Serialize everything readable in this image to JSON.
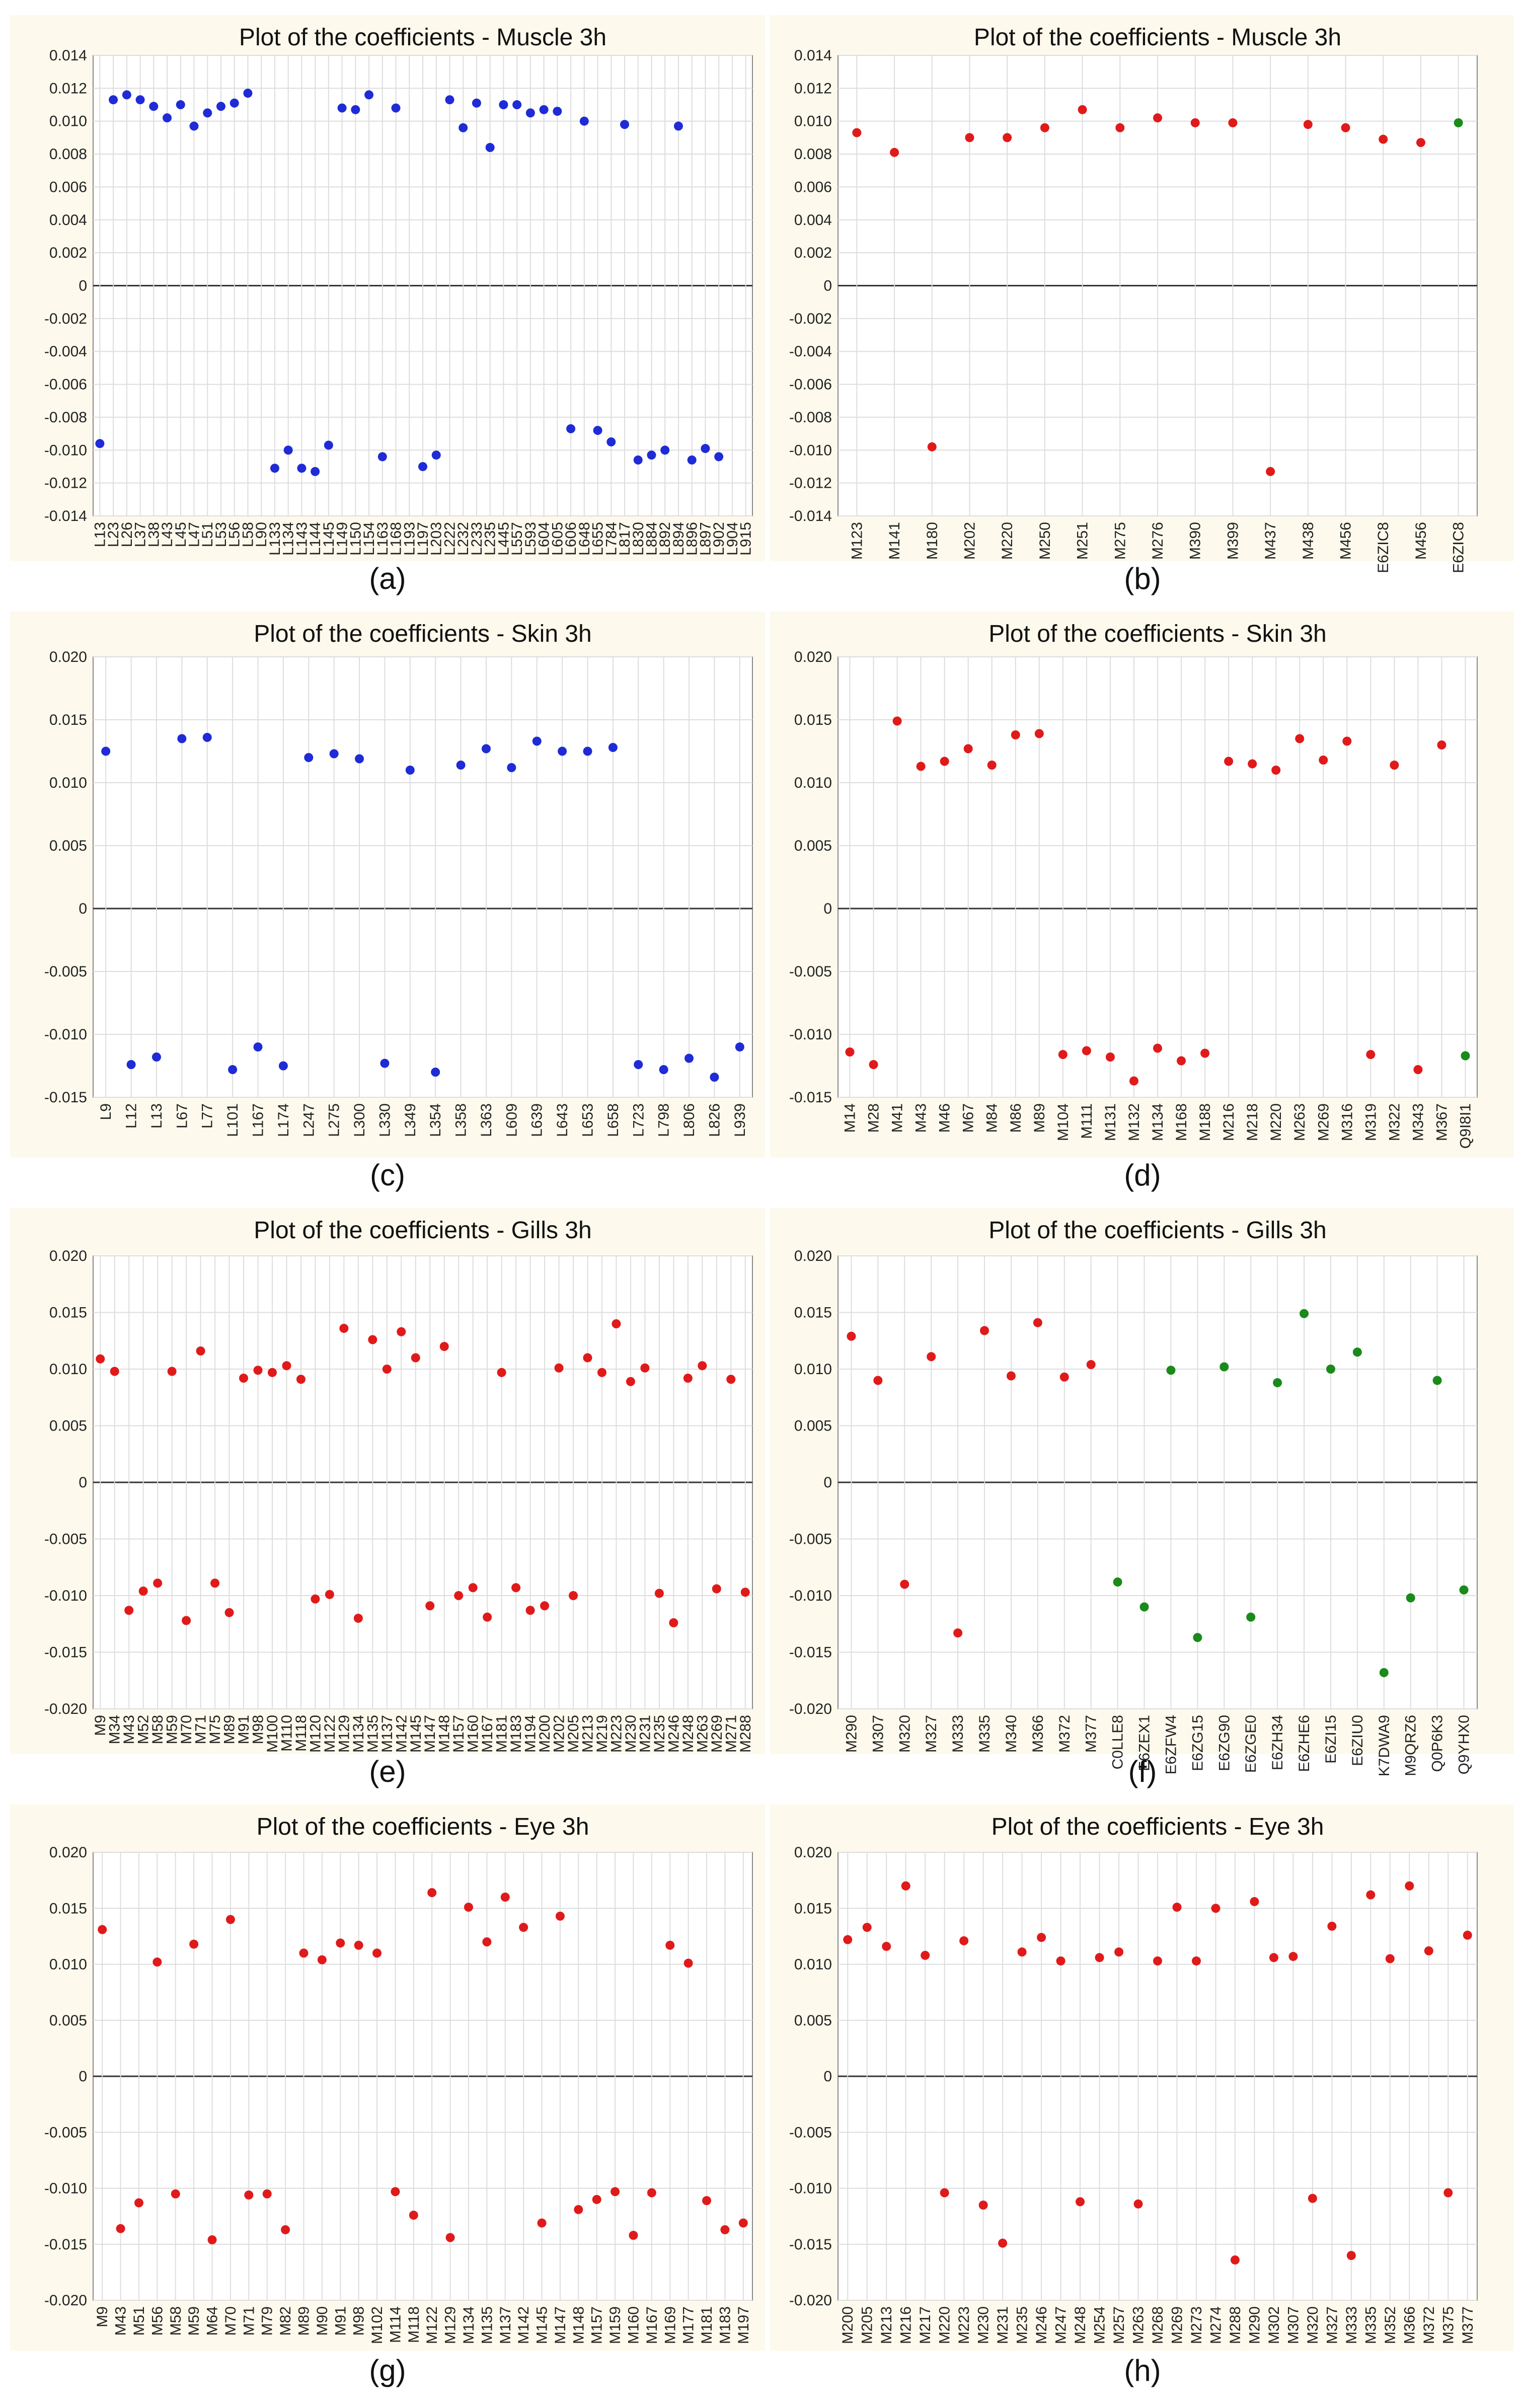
{
  "colors": {
    "blue": "#1f2bd6",
    "red": "#e01a1a",
    "green": "#1a8a1a",
    "panel_bg": "#fdf9ec",
    "grid": "#dddddd",
    "zero_line": "#333333"
  },
  "chart_data": [
    {
      "type": "scatter",
      "title": "Plot of the coefficients - Muscle 3h",
      "caption": "(a)",
      "ylim": [
        -0.014,
        0.014
      ],
      "yticks": [
        "0.014",
        "0.012",
        "0.010",
        "0.008",
        "0.006",
        "0.004",
        "0.002",
        "0",
        "-0.002",
        "-0.004",
        "-0.006",
        "-0.008",
        "-0.010",
        "-0.012",
        "-0.014"
      ],
      "grid": true,
      "categories": [
        "L13",
        "L23",
        "L26",
        "L37",
        "L38",
        "L43",
        "L45",
        "L47",
        "L51",
        "L53",
        "L56",
        "L58",
        "L90",
        "L133",
        "L134",
        "L143",
        "L144",
        "L145",
        "L149",
        "L150",
        "L154",
        "L163",
        "L168",
        "L193",
        "L197",
        "L203",
        "L222",
        "L232",
        "L233",
        "L235",
        "L445",
        "L557",
        "L593",
        "L604",
        "L605",
        "L606",
        "L648",
        "L655",
        "L784",
        "L817",
        "L830",
        "L884",
        "L892",
        "L894",
        "L896",
        "L897",
        "L902",
        "L904",
        "L915"
      ],
      "values": [
        -0.0096,
        0.0113,
        0.0116,
        0.0113,
        0.0109,
        0.0102,
        0.011,
        0.0097,
        0.0105,
        0.0109,
        0.0111,
        0.0117,
        null,
        -0.0111,
        -0.01,
        -0.0111,
        -0.0113,
        -0.0097,
        0.0108,
        0.0107,
        0.0116,
        -0.0104,
        0.0108,
        null,
        -0.011,
        -0.0103,
        0.0113,
        0.0096,
        0.0111,
        0.0084,
        0.011,
        0.011,
        0.0105,
        0.0107,
        0.0106,
        -0.0087,
        0.01,
        -0.0088,
        -0.0095,
        0.0098,
        -0.0106,
        -0.0103,
        -0.01,
        0.0097,
        -0.0106,
        -0.0099,
        -0.0104,
        null,
        null
      ],
      "point_colors": [
        "blue",
        "blue",
        "blue",
        "blue",
        "blue",
        "blue",
        "blue",
        "blue",
        "blue",
        "blue",
        "blue",
        "blue",
        "blue",
        "blue",
        "blue",
        "blue",
        "blue",
        "blue",
        "blue",
        "blue",
        "blue",
        "blue",
        "blue",
        "blue",
        "blue",
        "blue",
        "blue",
        "blue",
        "blue",
        "blue",
        "blue",
        "blue",
        "blue",
        "blue",
        "blue",
        "blue",
        "blue",
        "blue",
        "blue",
        "blue",
        "blue",
        "blue",
        "blue",
        "blue",
        "blue",
        "blue",
        "blue",
        "blue",
        "blue"
      ],
      "tick_rotate": true
    },
    {
      "type": "scatter",
      "title": "Plot of the coefficients - Muscle 3h",
      "caption": "(b)",
      "ylim": [
        -0.014,
        0.014
      ],
      "yticks": [
        "0.014",
        "0.012",
        "0.010",
        "0.008",
        "0.006",
        "0.004",
        "0.002",
        "0",
        "-0.002",
        "-0.004",
        "-0.006",
        "-0.008",
        "-0.010",
        "-0.012",
        "-0.014"
      ],
      "grid": true,
      "categories": [
        "M123",
        "M141",
        "M180",
        "M202",
        "M220",
        "M250",
        "M251",
        "M275",
        "M276",
        "M390",
        "M399",
        "M437",
        "M438",
        "M456",
        "E6ZIC8",
        "M456",
        "E6ZIC8"
      ],
      "values": [
        0.0093,
        0.0081,
        -0.0098,
        0.009,
        0.009,
        0.0096,
        0.0107,
        0.0096,
        0.0102,
        0.0099,
        0.0099,
        -0.0113,
        0.0098,
        0.0096,
        0.0089,
        0.0087,
        0.0099
      ],
      "point_colors": [
        "red",
        "red",
        "red",
        "red",
        "red",
        "red",
        "red",
        "red",
        "red",
        "red",
        "red",
        "red",
        "red",
        "red",
        "red",
        "red",
        "green"
      ],
      "tick_rotate": true
    },
    {
      "type": "scatter",
      "title": "Plot of the coefficients - Skin 3h",
      "caption": "(c)",
      "ylim": [
        -0.015,
        0.02
      ],
      "yticks": [
        "0.020",
        "0.015",
        "0.010",
        "0.005",
        "0",
        "-0.005",
        "-0.010",
        "-0.015"
      ],
      "grid": true,
      "categories": [
        "L9",
        "L12",
        "L13",
        "L67",
        "L77",
        "L101",
        "L167",
        "L174",
        "L247",
        "L275",
        "L300",
        "L330",
        "L349",
        "L354",
        "L358",
        "L363",
        "L609",
        "L639",
        "L643",
        "L653",
        "L658",
        "L723",
        "L798",
        "L806",
        "L826",
        "L939"
      ],
      "values": [
        0.0125,
        -0.0124,
        -0.0118,
        0.0135,
        0.0136,
        -0.0128,
        -0.011,
        -0.0125,
        0.012,
        0.0123,
        0.0119,
        -0.0123,
        0.011,
        -0.013,
        0.0114,
        0.0127,
        0.0112,
        0.0133,
        0.0125,
        0.0125,
        0.0128,
        -0.0124,
        -0.0128,
        -0.0119,
        -0.0134,
        -0.011
      ],
      "point_colors": [
        "blue",
        "blue",
        "blue",
        "blue",
        "blue",
        "blue",
        "blue",
        "blue",
        "blue",
        "blue",
        "blue",
        "blue",
        "blue",
        "blue",
        "blue",
        "blue",
        "blue",
        "blue",
        "blue",
        "blue",
        "blue",
        "blue",
        "blue",
        "blue",
        "blue",
        "blue"
      ],
      "tick_rotate": true,
      "dual_points": true
    },
    {
      "type": "scatter",
      "title": "Plot of the coefficients - Skin 3h",
      "caption": "(d)",
      "ylim": [
        -0.015,
        0.02
      ],
      "yticks": [
        "0.020",
        "0.015",
        "0.010",
        "0.005",
        "0",
        "-0.005",
        "-0.010",
        "-0.015"
      ],
      "grid": true,
      "categories": [
        "M14",
        "M28",
        "M41",
        "M43",
        "M46",
        "M67",
        "M84",
        "M86",
        "M89",
        "M104",
        "M111",
        "M131",
        "M132",
        "M134",
        "M168",
        "M188",
        "M216",
        "M218",
        "M220",
        "M263",
        "M269",
        "M316",
        "M319",
        "M322",
        "M343",
        "M367",
        "Q9I8I1"
      ],
      "values": [
        -0.0114,
        -0.0124,
        0.0149,
        0.0113,
        0.0117,
        0.0127,
        0.0114,
        0.0138,
        0.0139,
        -0.0116,
        -0.0113,
        -0.0118,
        -0.0137,
        -0.0111,
        -0.0121,
        -0.0115,
        0.0117,
        0.0115,
        0.011,
        0.0135,
        0.0118,
        0.0133,
        -0.0116,
        0.0114,
        -0.0128,
        0.013,
        -0.0117
      ],
      "point_colors": [
        "red",
        "red",
        "red",
        "red",
        "red",
        "red",
        "red",
        "red",
        "red",
        "red",
        "red",
        "red",
        "red",
        "red",
        "red",
        "red",
        "red",
        "red",
        "red",
        "red",
        "red",
        "red",
        "red",
        "red",
        "red",
        "red",
        "green"
      ],
      "tick_rotate": true
    },
    {
      "type": "scatter",
      "title": "Plot of the coefficients - Gills 3h",
      "caption": "(e)",
      "ylim": [
        -0.02,
        0.02
      ],
      "yticks": [
        "0.020",
        "0.015",
        "0.010",
        "0.005",
        "0",
        "-0.005",
        "-0.010",
        "-0.015",
        "-0.020"
      ],
      "grid": true,
      "categories": [
        "M9",
        "M34",
        "M43",
        "M52",
        "M58",
        "M59",
        "M70",
        "M71",
        "M75",
        "M89",
        "M91",
        "M98",
        "M100",
        "M110",
        "M118",
        "M120",
        "M122",
        "M129",
        "M134",
        "M135",
        "M137",
        "M142",
        "M145",
        "M147",
        "M148",
        "M157",
        "M160",
        "M167",
        "M181",
        "M183",
        "M194",
        "M200",
        "M202",
        "M205",
        "M213",
        "M219",
        "M223",
        "M230",
        "M231",
        "M235",
        "M246",
        "M248",
        "M263",
        "M269",
        "M271",
        "M288"
      ],
      "values": [
        0.0109,
        0.0098,
        -0.0113,
        -0.0096,
        -0.0089,
        0.0098,
        -0.0122,
        0.0116,
        -0.0089,
        -0.0115,
        0.0092,
        0.0099,
        0.0097,
        0.0103,
        0.0091,
        -0.0103,
        -0.0099,
        0.0136,
        -0.012,
        0.0126,
        0.01,
        0.0133,
        0.011,
        -0.0109,
        0.012,
        -0.01,
        -0.0093,
        -0.0119,
        0.0097,
        -0.0093,
        -0.0113,
        -0.0109,
        0.0101,
        -0.01,
        0.011,
        0.0097,
        0.014,
        0.0089,
        0.0101,
        -0.0098,
        -0.0124,
        0.0092,
        0.0103,
        -0.0094,
        0.0091,
        -0.0097
      ],
      "point_colors": [
        "red",
        "red",
        "red",
        "red",
        "red",
        "red",
        "red",
        "red",
        "red",
        "red",
        "red",
        "red",
        "red",
        "red",
        "red",
        "red",
        "red",
        "red",
        "red",
        "red",
        "red",
        "red",
        "red",
        "red",
        "red",
        "red",
        "red",
        "red",
        "red",
        "red",
        "red",
        "red",
        "red",
        "red",
        "red",
        "red",
        "red",
        "red",
        "red",
        "red",
        "red",
        "red",
        "red",
        "red",
        "red",
        "red"
      ],
      "tick_rotate": true
    },
    {
      "type": "scatter",
      "title": "Plot of the coefficients - Gills 3h",
      "caption": "(f)",
      "ylim": [
        -0.02,
        0.02
      ],
      "yticks": [
        "0.020",
        "0.015",
        "0.010",
        "0.005",
        "0",
        "-0.005",
        "-0.010",
        "-0.015",
        "-0.020"
      ],
      "grid": true,
      "categories": [
        "M290",
        "M307",
        "M320",
        "M327",
        "M333",
        "M335",
        "M340",
        "M366",
        "M372",
        "M377",
        "C0LLE8",
        "E6ZEX1",
        "E6ZFW4",
        "E6ZG15",
        "E6ZG90",
        "E6ZGE0",
        "E6ZH34",
        "E6ZHE6",
        "E6ZI15",
        "E6ZIU0",
        "K7DWA9",
        "M9QRZ6",
        "Q0P6K3",
        "Q9YHX0"
      ],
      "values": [
        0.0129,
        0.009,
        -0.009,
        0.0111,
        -0.0133,
        0.0134,
        0.0094,
        0.0141,
        0.0093,
        0.0104,
        -0.0088,
        -0.011,
        0.0099,
        -0.0137,
        0.0102,
        -0.0119,
        0.0088,
        0.0149,
        0.01,
        0.0115,
        -0.0168,
        -0.0102,
        0.009,
        -0.0095
      ],
      "point_colors": [
        "red",
        "red",
        "red",
        "red",
        "red",
        "red",
        "red",
        "red",
        "red",
        "red",
        "green",
        "green",
        "green",
        "green",
        "green",
        "green",
        "green",
        "green",
        "green",
        "green",
        "green",
        "green",
        "green",
        "green"
      ],
      "tick_rotate": true
    },
    {
      "type": "scatter",
      "title": "Plot of the coefficients - Eye 3h",
      "caption": "(g)",
      "ylim": [
        -0.02,
        0.02
      ],
      "yticks": [
        "0.020",
        "0.015",
        "0.010",
        "0.005",
        "0",
        "-0.005",
        "-0.010",
        "-0.015",
        "-0.020"
      ],
      "grid": true,
      "categories": [
        "M9",
        "M43",
        "M51",
        "M56",
        "M58",
        "M59",
        "M64",
        "M70",
        "M71",
        "M79",
        "M82",
        "M89",
        "M90",
        "M91",
        "M98",
        "M102",
        "M114",
        "M118",
        "M122",
        "M129",
        "M134",
        "M135",
        "M137",
        "M142",
        "M145",
        "M147",
        "M148",
        "M157",
        "M159",
        "M160",
        "M167",
        "M169",
        "M177",
        "M181",
        "M183",
        "M197"
      ],
      "values": [
        0.0131,
        -0.0136,
        -0.0113,
        0.0102,
        -0.0105,
        0.0118,
        -0.0146,
        0.014,
        -0.0106,
        -0.0105,
        -0.0137,
        0.011,
        0.0104,
        0.0119,
        0.0117,
        0.011,
        -0.0103,
        -0.0124,
        0.0164,
        -0.0144,
        0.0151,
        0.012,
        0.016,
        0.0133,
        -0.0131,
        0.0143,
        -0.0119,
        -0.011,
        -0.0103,
        -0.0142,
        -0.0104,
        0.0117,
        0.0101,
        -0.0111,
        -0.0137,
        -0.0131
      ],
      "point_colors": [
        "red",
        "red",
        "red",
        "red",
        "red",
        "red",
        "red",
        "red",
        "red",
        "red",
        "red",
        "red",
        "red",
        "red",
        "red",
        "red",
        "red",
        "red",
        "red",
        "red",
        "red",
        "red",
        "red",
        "red",
        "red",
        "red",
        "red",
        "red",
        "red",
        "red",
        "red",
        "red",
        "red",
        "red",
        "red",
        "red"
      ],
      "tick_rotate": true
    },
    {
      "type": "scatter",
      "title": "Plot of the coefficients - Eye 3h",
      "caption": "(h)",
      "ylim": [
        -0.02,
        0.02
      ],
      "yticks": [
        "0.020",
        "0.015",
        "0.010",
        "0.005",
        "0",
        "-0.005",
        "-0.010",
        "-0.015",
        "-0.020"
      ],
      "grid": true,
      "categories": [
        "M200",
        "M205",
        "M213",
        "M216",
        "M217",
        "M220",
        "M223",
        "M230",
        "M231",
        "M235",
        "M246",
        "M247",
        "M248",
        "M254",
        "M257",
        "M263",
        "M268",
        "M269",
        "M273",
        "M274",
        "M288",
        "M290",
        "M302",
        "M307",
        "M320",
        "M327",
        "M333",
        "M335",
        "M352",
        "M366",
        "M372",
        "M375",
        "M377"
      ],
      "values": [
        0.0122,
        0.0133,
        0.0116,
        0.017,
        0.0108,
        -0.0104,
        0.0121,
        -0.0115,
        -0.0149,
        0.0111,
        0.0124,
        0.0103,
        -0.0112,
        0.0106,
        0.0111,
        -0.0114,
        0.0103,
        0.0151,
        0.0103,
        0.015,
        -0.0164,
        0.0156,
        0.0106,
        0.0107,
        -0.0109,
        0.0134,
        -0.016,
        0.0162,
        0.0105,
        0.017,
        0.0112,
        -0.0104,
        0.0126
      ],
      "point_colors": [
        "red",
        "red",
        "red",
        "red",
        "red",
        "red",
        "red",
        "red",
        "red",
        "red",
        "red",
        "red",
        "red",
        "red",
        "red",
        "red",
        "red",
        "red",
        "red",
        "red",
        "red",
        "red",
        "red",
        "red",
        "red",
        "red",
        "red",
        "red",
        "red",
        "red",
        "red",
        "red",
        "red"
      ],
      "tick_rotate": true
    }
  ]
}
